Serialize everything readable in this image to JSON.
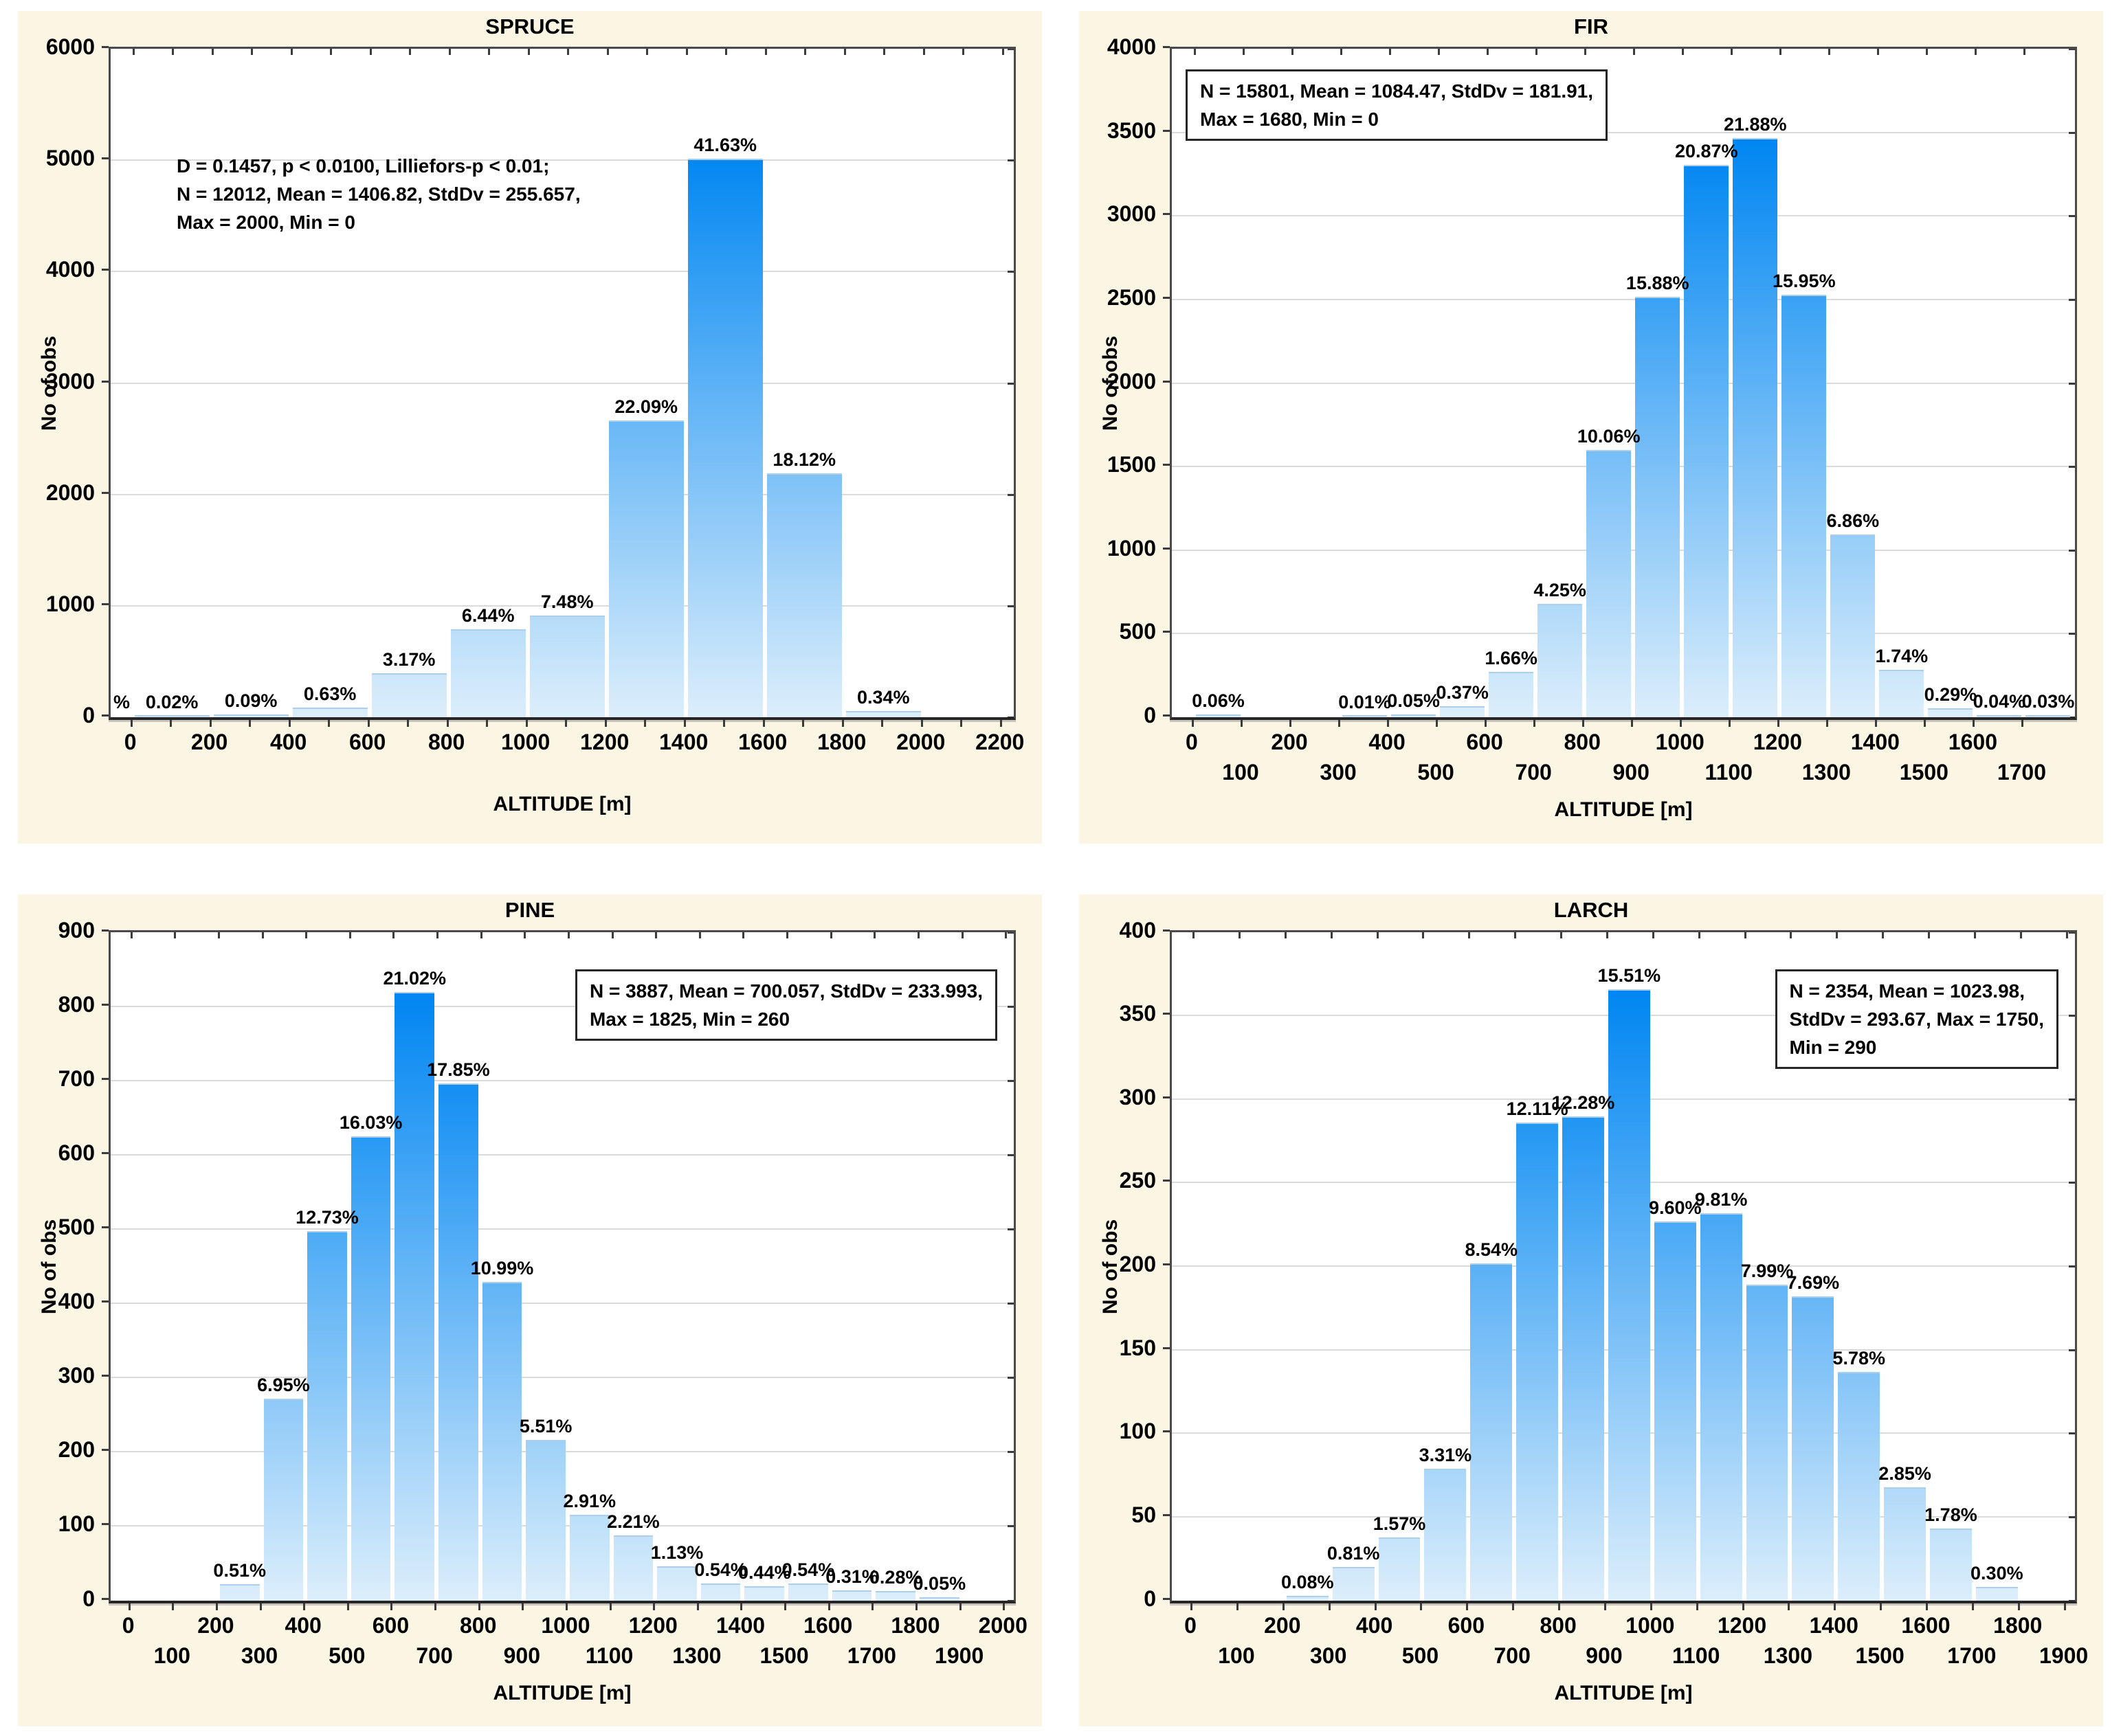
{
  "page": {
    "background": "#FFFFFF",
    "panel_background": "#FBF5E3",
    "plot_background": "#FFFFFF",
    "grid_color": "#DBDBDB",
    "frame_color": "#4A4A4A",
    "bar_color_low": "#DCEEFB",
    "bar_color_high": "#0086F2",
    "text_color": "#000000"
  },
  "chart_data": [
    {
      "type": "bar",
      "title": "SPRUCE",
      "xlabel": "ALTITUDE [m]",
      "ylabel": "No of obs",
      "ylim": [
        0,
        6000
      ],
      "y_tick_step": 1000,
      "x_domain": [
        -55,
        2230
      ],
      "bin_width": 200,
      "x_minor_tick_step": 100,
      "x_tick_rows": [
        [
          0,
          200,
          400,
          600,
          800,
          1000,
          1200,
          1400,
          1600,
          1800,
          2000,
          2200
        ]
      ],
      "annotation": {
        "boxed": false,
        "position": "top-left",
        "lines": [
          "D = 0.1457, p < 0.0100, Lilliefors-p < 0.01;",
          "N = 12012, Mean = 1406.82, StdDv = 255.657,",
          "Max = 2000, Min = 0"
        ]
      },
      "bars": [
        {
          "bin_start": -200,
          "label": "%",
          "count": 0
        },
        {
          "bin_start": 0,
          "label": "0.02%",
          "count": 2
        },
        {
          "bin_start": 200,
          "label": "0.09%",
          "count": 11
        },
        {
          "bin_start": 400,
          "label": "0.63%",
          "count": 76
        },
        {
          "bin_start": 600,
          "label": "3.17%",
          "count": 381
        },
        {
          "bin_start": 800,
          "label": "6.44%",
          "count": 774
        },
        {
          "bin_start": 1000,
          "label": "7.48%",
          "count": 899
        },
        {
          "bin_start": 1200,
          "label": "22.09%",
          "count": 2653
        },
        {
          "bin_start": 1400,
          "label": "41.63%",
          "count": 5001
        },
        {
          "bin_start": 1600,
          "label": "18.12%",
          "count": 2177
        },
        {
          "bin_start": 1800,
          "label": "0.34%",
          "count": 41
        }
      ]
    },
    {
      "type": "bar",
      "title": "FIR",
      "xlabel": "ALTITUDE [m]",
      "ylabel": "No of obs",
      "ylim": [
        0,
        4000
      ],
      "y_tick_step": 500,
      "x_domain": [
        -45,
        1805
      ],
      "bin_width": 100,
      "x_minor_tick_step": 100,
      "x_tick_rows": [
        [
          0,
          200,
          400,
          600,
          800,
          1000,
          1200,
          1400,
          1600
        ],
        [
          100,
          300,
          500,
          700,
          900,
          1100,
          1300,
          1500,
          1700
        ]
      ],
      "annotation": {
        "boxed": true,
        "position": "top-left",
        "lines": [
          "N = 15801, Mean = 1084.47, StdDv = 181.91,",
          "Max = 1680, Min = 0"
        ]
      },
      "bars": [
        {
          "bin_start": 0,
          "label": "0.06%",
          "count": 9
        },
        {
          "bin_start": 300,
          "label": "0.01%",
          "count": 2
        },
        {
          "bin_start": 400,
          "label": "0.05%",
          "count": 8
        },
        {
          "bin_start": 500,
          "label": "0.37%",
          "count": 58
        },
        {
          "bin_start": 600,
          "label": "1.66%",
          "count": 262
        },
        {
          "bin_start": 700,
          "label": "4.25%",
          "count": 672
        },
        {
          "bin_start": 800,
          "label": "10.06%",
          "count": 1590
        },
        {
          "bin_start": 900,
          "label": "15.88%",
          "count": 2509
        },
        {
          "bin_start": 1000,
          "label": "20.87%",
          "count": 3298
        },
        {
          "bin_start": 1100,
          "label": "21.88%",
          "count": 3457
        },
        {
          "bin_start": 1200,
          "label": "15.95%",
          "count": 2520
        },
        {
          "bin_start": 1300,
          "label": "6.86%",
          "count": 1084
        },
        {
          "bin_start": 1400,
          "label": "1.74%",
          "count": 275
        },
        {
          "bin_start": 1500,
          "label": "0.29%",
          "count": 46
        },
        {
          "bin_start": 1600,
          "label": "0.04%",
          "count": 6
        },
        {
          "bin_start": 1700,
          "label": "0.03%",
          "count": 5
        }
      ]
    },
    {
      "type": "bar",
      "title": "PINE",
      "xlabel": "ALTITUDE [m]",
      "ylabel": "No of obs",
      "ylim": [
        0,
        900
      ],
      "y_tick_step": 100,
      "x_domain": [
        -45,
        2020
      ],
      "bin_width": 100,
      "x_minor_tick_step": 100,
      "x_tick_rows": [
        [
          0,
          200,
          400,
          600,
          800,
          1000,
          1200,
          1400,
          1600,
          1800,
          2000
        ],
        [
          100,
          300,
          500,
          700,
          900,
          1100,
          1300,
          1500,
          1700,
          1900
        ]
      ],
      "annotation": {
        "boxed": true,
        "position": "top-right",
        "lines": [
          "N = 3887, Mean = 700.057, StdDv = 233.993,",
          "Max = 1825, Min = 260"
        ]
      },
      "bars": [
        {
          "bin_start": 200,
          "label": "0.51%",
          "count": 20
        },
        {
          "bin_start": 300,
          "label": "6.95%",
          "count": 270
        },
        {
          "bin_start": 400,
          "label": "12.73%",
          "count": 495
        },
        {
          "bin_start": 500,
          "label": "16.03%",
          "count": 623
        },
        {
          "bin_start": 600,
          "label": "21.02%",
          "count": 817
        },
        {
          "bin_start": 700,
          "label": "17.85%",
          "count": 694
        },
        {
          "bin_start": 800,
          "label": "10.99%",
          "count": 427
        },
        {
          "bin_start": 900,
          "label": "5.51%",
          "count": 214
        },
        {
          "bin_start": 1000,
          "label": "2.91%",
          "count": 113
        },
        {
          "bin_start": 1100,
          "label": "2.21%",
          "count": 86
        },
        {
          "bin_start": 1200,
          "label": "1.13%",
          "count": 44
        },
        {
          "bin_start": 1300,
          "label": "0.54%",
          "count": 21
        },
        {
          "bin_start": 1400,
          "label": "0.44%",
          "count": 17
        },
        {
          "bin_start": 1500,
          "label": "0.54%",
          "count": 21
        },
        {
          "bin_start": 1600,
          "label": "0.31%",
          "count": 12
        },
        {
          "bin_start": 1700,
          "label": "0.28%",
          "count": 11
        },
        {
          "bin_start": 1800,
          "label": "0.05%",
          "count": 2
        }
      ]
    },
    {
      "type": "bar",
      "title": "LARCH",
      "xlabel": "ALTITUDE [m]",
      "ylabel": "No of obs",
      "ylim": [
        0,
        400
      ],
      "y_tick_step": 50,
      "x_domain": [
        -45,
        1920
      ],
      "bin_width": 100,
      "x_minor_tick_step": 100,
      "x_tick_rows": [
        [
          0,
          200,
          400,
          600,
          800,
          1000,
          1200,
          1400,
          1600,
          1800
        ],
        [
          100,
          300,
          500,
          700,
          900,
          1100,
          1300,
          1500,
          1700,
          1900
        ]
      ],
      "annotation": {
        "boxed": true,
        "position": "top-right",
        "lines": [
          "N = 2354, Mean = 1023.98,",
          "StdDv = 293.67, Max = 1750,",
          "Min = 290"
        ]
      },
      "bars": [
        {
          "bin_start": 200,
          "label": "0.08%",
          "count": 2
        },
        {
          "bin_start": 300,
          "label": "0.81%",
          "count": 19
        },
        {
          "bin_start": 400,
          "label": "1.57%",
          "count": 37
        },
        {
          "bin_start": 500,
          "label": "3.31%",
          "count": 78
        },
        {
          "bin_start": 600,
          "label": "8.54%",
          "count": 201
        },
        {
          "bin_start": 700,
          "label": "12.11%",
          "count": 285
        },
        {
          "bin_start": 800,
          "label": "12.28%",
          "count": 289
        },
        {
          "bin_start": 900,
          "label": "15.51%",
          "count": 365
        },
        {
          "bin_start": 1000,
          "label": "9.60%",
          "count": 226
        },
        {
          "bin_start": 1100,
          "label": "9.81%",
          "count": 231
        },
        {
          "bin_start": 1200,
          "label": "7.99%",
          "count": 188
        },
        {
          "bin_start": 1300,
          "label": "7.69%",
          "count": 181
        },
        {
          "bin_start": 1400,
          "label": "5.78%",
          "count": 136
        },
        {
          "bin_start": 1500,
          "label": "2.85%",
          "count": 67
        },
        {
          "bin_start": 1600,
          "label": "1.78%",
          "count": 42
        },
        {
          "bin_start": 1700,
          "label": "0.30%",
          "count": 7
        }
      ]
    }
  ]
}
